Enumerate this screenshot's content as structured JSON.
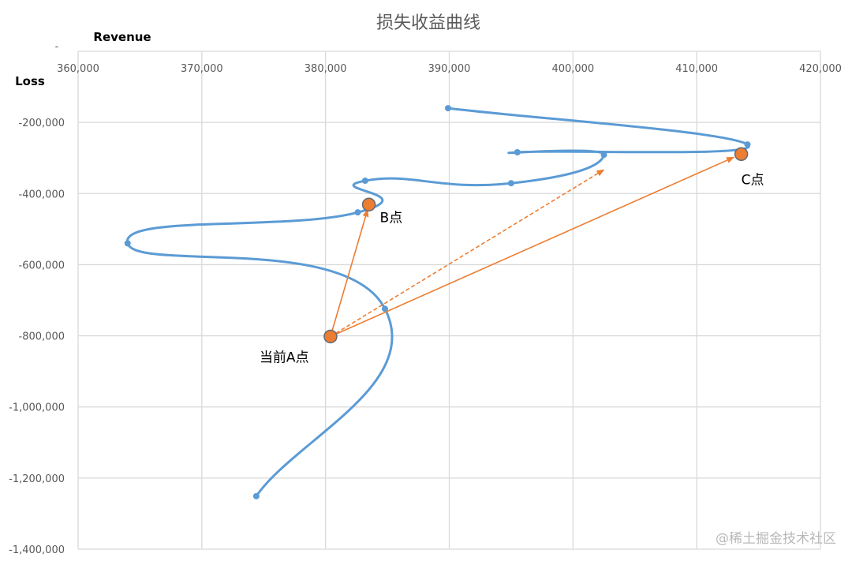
{
  "chart_data": {
    "type": "scatter",
    "title": "损失收益曲线",
    "xlabel": "Revenue",
    "ylabel": "Loss",
    "xlim": [
      360000,
      420000
    ],
    "ylim": [
      -1400000,
      0
    ],
    "x_ticks": [
      "360,000",
      "370,000",
      "380,000",
      "390,000",
      "400,000",
      "410,000",
      "420,000"
    ],
    "y_ticks": [
      "-",
      "-200,000",
      "-400,000",
      "-600,000",
      "-800,000",
      "-1,000,000",
      "-1,200,000",
      "-1,400,000"
    ],
    "grid": true,
    "x_axis_position": "top",
    "series": [
      {
        "style": "smooth-line-with-markers",
        "color": "#5b9bd5",
        "points": [
          [
            374400,
            -1251000
          ],
          [
            384800,
            -724000
          ],
          [
            364000,
            -540000
          ],
          [
            382600,
            -453000
          ],
          [
            383200,
            -364000
          ],
          [
            395000,
            -371000
          ],
          [
            402500,
            -291000
          ],
          [
            395500,
            -284000
          ],
          [
            414100,
            -262000
          ],
          [
            389900,
            -160000
          ]
        ]
      }
    ],
    "highlight_points": [
      {
        "label": "当前A点",
        "x": 380400,
        "y": -802000,
        "color": "#ed7d31"
      },
      {
        "label": "B点",
        "x": 383500,
        "y": -431000,
        "color": "#ed7d31"
      },
      {
        "label": "C点",
        "x": 413600,
        "y": -289000,
        "color": "#ed7d31"
      }
    ],
    "arrows": [
      {
        "from": [
          380400,
          -802000
        ],
        "to": [
          383400,
          -445000
        ],
        "style": "solid",
        "color": "#ed7d31"
      },
      {
        "from": [
          380400,
          -802000
        ],
        "to": [
          402500,
          -333000
        ],
        "style": "dashed",
        "color": "#ed7d31"
      },
      {
        "from": [
          380400,
          -802000
        ],
        "to": [
          413000,
          -298000
        ],
        "style": "solid",
        "color": "#ed7d31"
      }
    ]
  },
  "watermark": "@稀土掘金技术社区"
}
